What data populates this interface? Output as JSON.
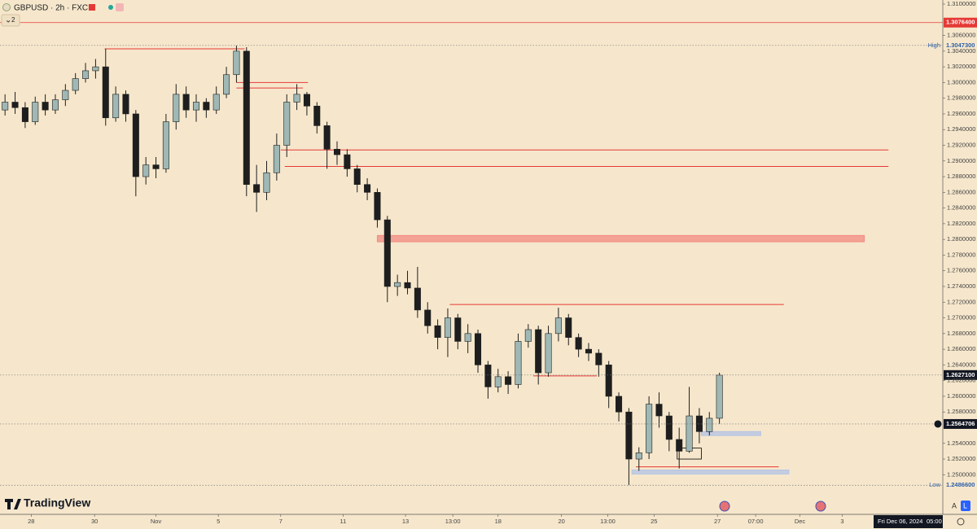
{
  "chart_data": {
    "type": "candlestick",
    "title": "GBPUSD · 2h · FXCM",
    "badge": "2",
    "logo": "TradingView",
    "cursor_date": "Fri Dec 06, 2024",
    "cursor_time": "05:00",
    "scale_buttons": [
      "A",
      "L"
    ],
    "up_color": "#9fb8b5",
    "down_color": "#1e1e1e",
    "background": "#f6e7cc",
    "grid": false,
    "xlim": [
      0,
      93.7
    ],
    "ylim": [
      1.24495,
      1.31052
    ],
    "open": [
      1.2965,
      1.2975,
      1.2968,
      1.295,
      1.2975,
      1.2965,
      1.2978,
      1.299,
      1.3005,
      1.3015,
      1.302,
      1.2955,
      1.2985,
      1.296,
      1.288,
      1.2895,
      1.289,
      1.295,
      1.2985,
      1.2965,
      1.2975,
      1.2965,
      1.2985,
      1.301,
      1.304,
      1.287,
      1.286,
      1.2885,
      1.292,
      1.2975,
      1.2985,
      1.297,
      1.2945,
      1.2915,
      1.2908,
      1.289,
      1.287,
      1.286,
      1.2825,
      1.274,
      1.2745,
      1.2738,
      1.271,
      1.269,
      1.2675,
      1.27,
      1.267,
      1.268,
      1.264,
      1.2612,
      1.2625,
      1.2615,
      1.267,
      1.2685,
      1.263,
      1.268,
      1.27,
      1.2675,
      1.266,
      1.2655,
      1.264,
      1.26,
      1.258,
      1.252,
      1.2528,
      1.259,
      1.2575,
      1.2545,
      1.253,
      1.2575,
      1.2555,
      1.2572
    ],
    "high": [
      1.2985,
      1.2988,
      1.2975,
      1.2982,
      1.2985,
      1.2985,
      1.2998,
      1.3012,
      1.3025,
      1.303,
      1.3043,
      1.2995,
      1.299,
      1.2965,
      1.2905,
      1.2905,
      1.296,
      1.2998,
      1.2995,
      1.2985,
      1.298,
      1.2995,
      1.302,
      1.3047,
      1.3045,
      1.2895,
      1.29,
      1.2935,
      1.2985,
      1.2998,
      1.2988,
      1.2975,
      1.295,
      1.2925,
      1.2915,
      1.2895,
      1.2878,
      1.2865,
      1.283,
      1.2755,
      1.276,
      1.2765,
      1.272,
      1.2698,
      1.2712,
      1.2705,
      1.2692,
      1.2685,
      1.2645,
      1.2635,
      1.2632,
      1.268,
      1.2692,
      1.269,
      1.269,
      1.2713,
      1.2705,
      1.268,
      1.2668,
      1.266,
      1.2645,
      1.2605,
      1.2585,
      1.2535,
      1.26,
      1.2605,
      1.258,
      1.256,
      1.2612,
      1.2585,
      1.258,
      1.263
    ],
    "low": [
      1.2958,
      1.296,
      1.2942,
      1.2946,
      1.2958,
      1.296,
      1.297,
      1.2985,
      1.3,
      1.3005,
      1.2945,
      1.295,
      1.295,
      1.2855,
      1.287,
      1.2878,
      1.2885,
      1.294,
      1.2955,
      1.295,
      1.2955,
      1.296,
      1.298,
      1.3,
      1.2855,
      1.2835,
      1.285,
      1.2875,
      1.2905,
      1.2965,
      1.2958,
      1.2935,
      1.289,
      1.2895,
      1.288,
      1.286,
      1.285,
      1.2815,
      1.272,
      1.2728,
      1.273,
      1.27,
      1.268,
      1.266,
      1.265,
      1.266,
      1.2655,
      1.263,
      1.2597,
      1.2605,
      1.2603,
      1.261,
      1.2662,
      1.2615,
      1.2625,
      1.267,
      1.2665,
      1.265,
      1.2645,
      1.2625,
      1.2585,
      1.2568,
      1.2487,
      1.2505,
      1.252,
      1.256,
      1.253,
      1.2508,
      1.2528,
      1.254,
      1.255,
      1.2565
    ],
    "close": [
      1.2975,
      1.2968,
      1.295,
      1.2975,
      1.2965,
      1.2978,
      1.299,
      1.3005,
      1.3015,
      1.302,
      1.2955,
      1.2985,
      1.296,
      1.288,
      1.2895,
      1.289,
      1.295,
      1.2985,
      1.2965,
      1.2975,
      1.2965,
      1.2985,
      1.301,
      1.304,
      1.287,
      1.286,
      1.2885,
      1.292,
      1.2975,
      1.2985,
      1.297,
      1.2945,
      1.2915,
      1.2908,
      1.289,
      1.287,
      1.286,
      1.2825,
      1.274,
      1.2745,
      1.2738,
      1.271,
      1.269,
      1.2675,
      1.27,
      1.267,
      1.268,
      1.264,
      1.2612,
      1.2625,
      1.2615,
      1.267,
      1.2685,
      1.263,
      1.268,
      1.27,
      1.2675,
      1.266,
      1.2655,
      1.264,
      1.26,
      1.258,
      1.252,
      1.2528,
      1.259,
      1.2575,
      1.2545,
      1.253,
      1.2575,
      1.2555,
      1.2572,
      1.2627
    ],
    "yticks": [
      {
        "value": 1.31,
        "label": "1.3100000"
      },
      {
        "value": 1.306,
        "label": "1.3060000"
      },
      {
        "value": 1.304,
        "label": "1.3040000"
      },
      {
        "value": 1.302,
        "label": "1.3020000"
      },
      {
        "value": 1.3,
        "label": "1.3000000"
      },
      {
        "value": 1.298,
        "label": "1.2980000"
      },
      {
        "value": 1.296,
        "label": "1.2960000"
      },
      {
        "value": 1.294,
        "label": "1.2940000"
      },
      {
        "value": 1.292,
        "label": "1.2920000"
      },
      {
        "value": 1.29,
        "label": "1.2900000"
      },
      {
        "value": 1.288,
        "label": "1.2880000"
      },
      {
        "value": 1.286,
        "label": "1.2860000"
      },
      {
        "value": 1.284,
        "label": "1.2840000"
      },
      {
        "value": 1.282,
        "label": "1.2820000"
      },
      {
        "value": 1.28,
        "label": "1.2800000"
      },
      {
        "value": 1.278,
        "label": "1.2780000"
      },
      {
        "value": 1.276,
        "label": "1.2760000"
      },
      {
        "value": 1.274,
        "label": "1.2740000"
      },
      {
        "value": 1.272,
        "label": "1.2720000"
      },
      {
        "value": 1.27,
        "label": "1.2700000"
      },
      {
        "value": 1.268,
        "label": "1.2680000"
      },
      {
        "value": 1.266,
        "label": "1.2660000"
      },
      {
        "value": 1.264,
        "label": "1.2640000"
      },
      {
        "value": 1.262,
        "label": "1.2620000"
      },
      {
        "value": 1.26,
        "label": "1.2600000"
      },
      {
        "value": 1.258,
        "label": "1.2580000"
      },
      {
        "value": 1.254,
        "label": "1.2540000"
      },
      {
        "value": 1.252,
        "label": "1.2520000"
      },
      {
        "value": 1.25,
        "label": "1.2500000"
      }
    ],
    "xticks": [
      {
        "value": 3.1,
        "label": "28"
      },
      {
        "value": 9.4,
        "label": "30"
      },
      {
        "value": 15.5,
        "label": "Nov"
      },
      {
        "value": 21.7,
        "label": "5"
      },
      {
        "value": 27.9,
        "label": "7"
      },
      {
        "value": 34.1,
        "label": "11"
      },
      {
        "value": 40.3,
        "label": "13"
      },
      {
        "value": 45,
        "label": "13:00"
      },
      {
        "value": 49.5,
        "label": "18"
      },
      {
        "value": 55.8,
        "label": "20"
      },
      {
        "value": 60.4,
        "label": "13:00"
      },
      {
        "value": 65,
        "label": "25"
      },
      {
        "value": 71.3,
        "label": "27"
      },
      {
        "value": 75.1,
        "label": "07:00"
      },
      {
        "value": 79.5,
        "label": "Dec"
      },
      {
        "value": 83.7,
        "label": "3"
      }
    ],
    "price_labels": [
      {
        "value": 1.30764,
        "label": "1.3076400",
        "style": "red",
        "line": "solid"
      },
      {
        "value": 1.30473,
        "label": "1.3047300",
        "tag": "High",
        "style": "plain",
        "line": "dotted"
      },
      {
        "value": 1.26271,
        "label": "1.2627100",
        "style": "dark",
        "line": "dotted"
      },
      {
        "value": 1.2564706,
        "label": "1.2564706",
        "style": "dark",
        "line": "dotted"
      },
      {
        "value": 1.24866,
        "label": "1.2486600",
        "tag": "Low",
        "style": "plain",
        "line": "dotted"
      }
    ],
    "drawings": [
      {
        "type": "line",
        "price": 1.3043,
        "from": 10.4,
        "to": 24.3,
        "color": "#e53935"
      },
      {
        "type": "line",
        "price": 1.3,
        "from": 23.5,
        "to": 30.6,
        "color": "#e53935"
      },
      {
        "type": "line",
        "price": 1.2993,
        "from": 23.5,
        "to": 30.1,
        "color": "#e53935"
      },
      {
        "type": "line",
        "price": 1.2914,
        "from": 27.9,
        "to": 88.3,
        "color": "#e53935"
      },
      {
        "type": "line",
        "price": 1.2893,
        "from": 28.3,
        "to": 88.3,
        "color": "#e53935"
      },
      {
        "type": "zone",
        "top": 1.2805,
        "bottom": 1.2797,
        "from": 37.5,
        "to": 85.9,
        "color": "#f28b82"
      },
      {
        "type": "line",
        "price": 1.2717,
        "from": 44.7,
        "to": 77.9,
        "color": "#e53935"
      },
      {
        "type": "line",
        "price": 1.2626,
        "from": 53,
        "to": 59.3,
        "color": "#e53935"
      },
      {
        "type": "zone",
        "top": 1.2555,
        "bottom": 1.255,
        "from": 69.7,
        "to": 75.6,
        "color": "#b3c3e6"
      },
      {
        "type": "zone",
        "top": 1.2506,
        "bottom": 1.2501,
        "from": 62.8,
        "to": 78.4,
        "color": "#b3c3e6"
      },
      {
        "type": "line",
        "price": 1.251,
        "from": 63.2,
        "to": 77.4,
        "color": "#e53935"
      },
      {
        "type": "box",
        "top": 1.2534,
        "bottom": 1.252,
        "from": 67.3,
        "to": 69.7,
        "color": "#000000"
      }
    ]
  }
}
